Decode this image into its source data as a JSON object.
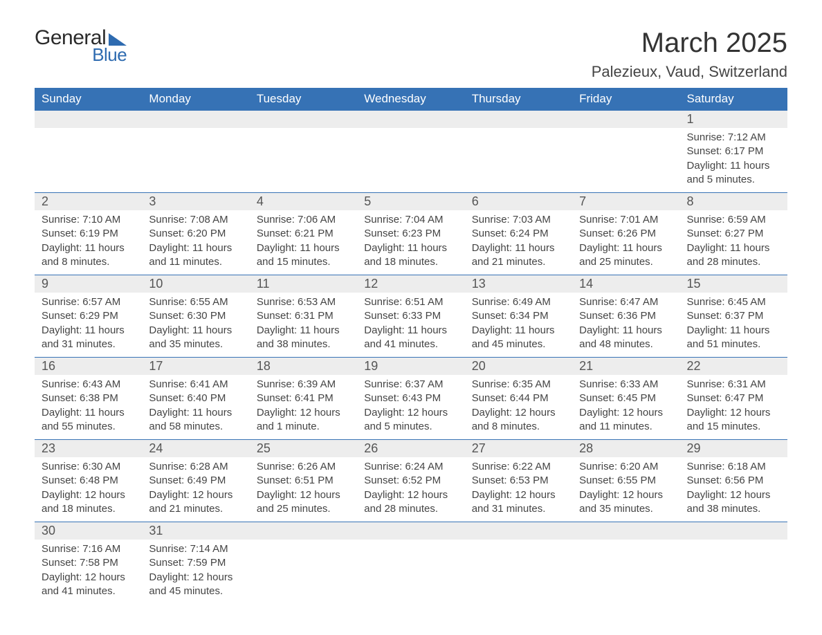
{
  "logo": {
    "text_general": "General",
    "text_blue": "Blue",
    "brand_color": "#2e6bb0"
  },
  "title": "March 2025",
  "location": "Palezieux, Vaud, Switzerland",
  "header_bg": "#3672b5",
  "header_fg": "#ffffff",
  "stripe_bg": "#ededed",
  "text_color": "#444444",
  "day_headers": [
    "Sunday",
    "Monday",
    "Tuesday",
    "Wednesday",
    "Thursday",
    "Friday",
    "Saturday"
  ],
  "weeks": [
    [
      null,
      null,
      null,
      null,
      null,
      null,
      {
        "d": "1",
        "sr": "Sunrise: 7:12 AM",
        "ss": "Sunset: 6:17 PM",
        "dl": "Daylight: 11 hours and 5 minutes."
      }
    ],
    [
      {
        "d": "2",
        "sr": "Sunrise: 7:10 AM",
        "ss": "Sunset: 6:19 PM",
        "dl": "Daylight: 11 hours and 8 minutes."
      },
      {
        "d": "3",
        "sr": "Sunrise: 7:08 AM",
        "ss": "Sunset: 6:20 PM",
        "dl": "Daylight: 11 hours and 11 minutes."
      },
      {
        "d": "4",
        "sr": "Sunrise: 7:06 AM",
        "ss": "Sunset: 6:21 PM",
        "dl": "Daylight: 11 hours and 15 minutes."
      },
      {
        "d": "5",
        "sr": "Sunrise: 7:04 AM",
        "ss": "Sunset: 6:23 PM",
        "dl": "Daylight: 11 hours and 18 minutes."
      },
      {
        "d": "6",
        "sr": "Sunrise: 7:03 AM",
        "ss": "Sunset: 6:24 PM",
        "dl": "Daylight: 11 hours and 21 minutes."
      },
      {
        "d": "7",
        "sr": "Sunrise: 7:01 AM",
        "ss": "Sunset: 6:26 PM",
        "dl": "Daylight: 11 hours and 25 minutes."
      },
      {
        "d": "8",
        "sr": "Sunrise: 6:59 AM",
        "ss": "Sunset: 6:27 PM",
        "dl": "Daylight: 11 hours and 28 minutes."
      }
    ],
    [
      {
        "d": "9",
        "sr": "Sunrise: 6:57 AM",
        "ss": "Sunset: 6:29 PM",
        "dl": "Daylight: 11 hours and 31 minutes."
      },
      {
        "d": "10",
        "sr": "Sunrise: 6:55 AM",
        "ss": "Sunset: 6:30 PM",
        "dl": "Daylight: 11 hours and 35 minutes."
      },
      {
        "d": "11",
        "sr": "Sunrise: 6:53 AM",
        "ss": "Sunset: 6:31 PM",
        "dl": "Daylight: 11 hours and 38 minutes."
      },
      {
        "d": "12",
        "sr": "Sunrise: 6:51 AM",
        "ss": "Sunset: 6:33 PM",
        "dl": "Daylight: 11 hours and 41 minutes."
      },
      {
        "d": "13",
        "sr": "Sunrise: 6:49 AM",
        "ss": "Sunset: 6:34 PM",
        "dl": "Daylight: 11 hours and 45 minutes."
      },
      {
        "d": "14",
        "sr": "Sunrise: 6:47 AM",
        "ss": "Sunset: 6:36 PM",
        "dl": "Daylight: 11 hours and 48 minutes."
      },
      {
        "d": "15",
        "sr": "Sunrise: 6:45 AM",
        "ss": "Sunset: 6:37 PM",
        "dl": "Daylight: 11 hours and 51 minutes."
      }
    ],
    [
      {
        "d": "16",
        "sr": "Sunrise: 6:43 AM",
        "ss": "Sunset: 6:38 PM",
        "dl": "Daylight: 11 hours and 55 minutes."
      },
      {
        "d": "17",
        "sr": "Sunrise: 6:41 AM",
        "ss": "Sunset: 6:40 PM",
        "dl": "Daylight: 11 hours and 58 minutes."
      },
      {
        "d": "18",
        "sr": "Sunrise: 6:39 AM",
        "ss": "Sunset: 6:41 PM",
        "dl": "Daylight: 12 hours and 1 minute."
      },
      {
        "d": "19",
        "sr": "Sunrise: 6:37 AM",
        "ss": "Sunset: 6:43 PM",
        "dl": "Daylight: 12 hours and 5 minutes."
      },
      {
        "d": "20",
        "sr": "Sunrise: 6:35 AM",
        "ss": "Sunset: 6:44 PM",
        "dl": "Daylight: 12 hours and 8 minutes."
      },
      {
        "d": "21",
        "sr": "Sunrise: 6:33 AM",
        "ss": "Sunset: 6:45 PM",
        "dl": "Daylight: 12 hours and 11 minutes."
      },
      {
        "d": "22",
        "sr": "Sunrise: 6:31 AM",
        "ss": "Sunset: 6:47 PM",
        "dl": "Daylight: 12 hours and 15 minutes."
      }
    ],
    [
      {
        "d": "23",
        "sr": "Sunrise: 6:30 AM",
        "ss": "Sunset: 6:48 PM",
        "dl": "Daylight: 12 hours and 18 minutes."
      },
      {
        "d": "24",
        "sr": "Sunrise: 6:28 AM",
        "ss": "Sunset: 6:49 PM",
        "dl": "Daylight: 12 hours and 21 minutes."
      },
      {
        "d": "25",
        "sr": "Sunrise: 6:26 AM",
        "ss": "Sunset: 6:51 PM",
        "dl": "Daylight: 12 hours and 25 minutes."
      },
      {
        "d": "26",
        "sr": "Sunrise: 6:24 AM",
        "ss": "Sunset: 6:52 PM",
        "dl": "Daylight: 12 hours and 28 minutes."
      },
      {
        "d": "27",
        "sr": "Sunrise: 6:22 AM",
        "ss": "Sunset: 6:53 PM",
        "dl": "Daylight: 12 hours and 31 minutes."
      },
      {
        "d": "28",
        "sr": "Sunrise: 6:20 AM",
        "ss": "Sunset: 6:55 PM",
        "dl": "Daylight: 12 hours and 35 minutes."
      },
      {
        "d": "29",
        "sr": "Sunrise: 6:18 AM",
        "ss": "Sunset: 6:56 PM",
        "dl": "Daylight: 12 hours and 38 minutes."
      }
    ],
    [
      {
        "d": "30",
        "sr": "Sunrise: 7:16 AM",
        "ss": "Sunset: 7:58 PM",
        "dl": "Daylight: 12 hours and 41 minutes."
      },
      {
        "d": "31",
        "sr": "Sunrise: 7:14 AM",
        "ss": "Sunset: 7:59 PM",
        "dl": "Daylight: 12 hours and 45 minutes."
      },
      null,
      null,
      null,
      null,
      null
    ]
  ]
}
